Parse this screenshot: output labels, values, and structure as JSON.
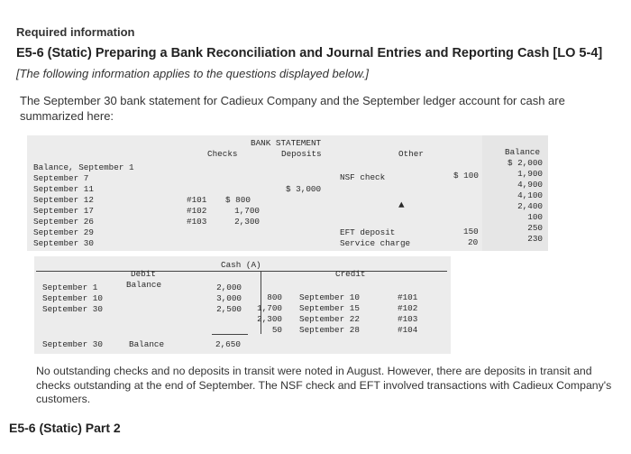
{
  "header": {
    "required": "Required information",
    "title": "E5-6 (Static) Preparing a Bank Reconciliation and Journal Entries and Reporting Cash [LO 5-4]",
    "italic_note": "[The following information applies to the questions displayed below.]",
    "intro": "The September 30 bank statement for Cadieux Company and the September ledger account for cash are summarized here:"
  },
  "bank": {
    "title": "BANK STATEMENT",
    "col_checks": "Checks",
    "col_deposits": "Deposits",
    "col_other": "Other",
    "col_balance": "Balance",
    "dates": [
      "Balance, September 1",
      "September 7",
      "September 11",
      "September 12",
      "September 17",
      "September 26",
      "September 29",
      "September 30"
    ],
    "check_nums": [
      "#101",
      "#102",
      "#103"
    ],
    "check_amts": [
      "$ 800",
      "1,700",
      "2,300"
    ],
    "deposit": "$ 3,000",
    "nsf_label": "NSF check",
    "nsf_amt": "$ 100",
    "eft_label": "EFT deposit",
    "svc_label": "Service charge",
    "eft_amt": "150",
    "svc_amt": "20",
    "balances": [
      "$ 2,000",
      "1,900",
      "4,900",
      "4,100",
      "2,400",
      "100",
      "250",
      "230"
    ]
  },
  "ledger": {
    "title": "Cash (A)",
    "debit_label": "Debit",
    "balance_label": "Balance",
    "credit_label": "Credit",
    "debit_dates": [
      "September 1",
      "September 10",
      "September 30"
    ],
    "debit_balance_hdr": "Balance",
    "debit_amts": [
      "2,000",
      "3,000",
      "2,500"
    ],
    "credit_amts": [
      "800",
      "1,700",
      "2,300",
      "50"
    ],
    "credit_dates": [
      "September 10",
      "September 15",
      "September 22",
      "September 28"
    ],
    "credit_refs": [
      "#101",
      "#102",
      "#103",
      "#104"
    ],
    "end_date": "September 30",
    "end_label": "Balance",
    "end_amt": "2,650"
  },
  "note": "No outstanding checks and no deposits in transit were noted in August. However, there are deposits in transit and checks outstanding at the end of September. The NSF check and EFT involved transactions with Cadieux Company's customers.",
  "part": "E5-6 (Static) Part 2"
}
